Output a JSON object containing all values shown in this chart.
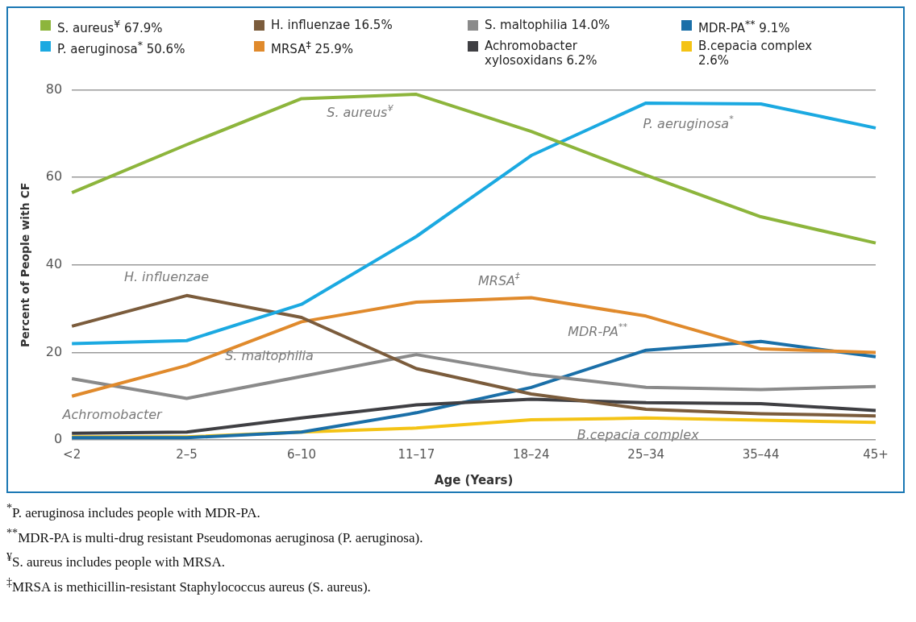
{
  "chart_data": {
    "type": "line",
    "xlabel": "Age (Years)",
    "ylabel": "Percent of People with CF",
    "categories": [
      "<2",
      "2–5",
      "6–10",
      "11–17",
      "18–24",
      "25–34",
      "35–44",
      "45+"
    ],
    "ylim": [
      0,
      80
    ],
    "yticks": [
      0,
      20,
      40,
      60,
      80
    ],
    "grid": "y",
    "legend": "top",
    "series": [
      {
        "name": "S. aureus$^{¥}$ 67.9%",
        "color": "#8db53c",
        "values": [
          56.5,
          67.5,
          78,
          79,
          70.5,
          60.5,
          51,
          45
        ]
      },
      {
        "name": "P. aeruginosa$^{*}$ 50.6%",
        "color": "#1ba9e1",
        "values": [
          22,
          22.7,
          31,
          46.5,
          65,
          77,
          76.8,
          71.3
        ]
      },
      {
        "name": "H. influenzae 16.5%",
        "color": "#7b5c3c",
        "values": [
          26,
          33,
          28,
          16.3,
          10.5,
          7,
          6,
          5.5
        ]
      },
      {
        "name": "MRSA$^{‡}$ 25.9%",
        "color": "#e08a2c",
        "values": [
          10,
          17,
          27,
          31.5,
          32.5,
          28.3,
          20.8,
          20
        ]
      },
      {
        "name": "S. maltophilia 14.0%",
        "color": "#8a8a8a",
        "values": [
          14,
          9.5,
          14.5,
          19.5,
          15,
          12,
          11.5,
          12.2
        ]
      },
      {
        "name": "Achromobacter xylosoxidans 6.2%",
        "color": "#3f3f43",
        "values": [
          1.5,
          1.8,
          5,
          8,
          9.3,
          8.5,
          8.3,
          6.7
        ]
      },
      {
        "name": "MDR-PA$^{**}$ 9.1%",
        "color": "#1a6fa8",
        "values": [
          0.5,
          0.5,
          1.8,
          6.2,
          12,
          20.5,
          22.5,
          19
        ]
      },
      {
        "name": "B.cepacia complex 2.6%",
        "color": "#f4c315",
        "values": [
          0.7,
          0.7,
          1.8,
          2.7,
          4.6,
          5,
          4.5,
          4
        ]
      }
    ],
    "annotations": [
      {
        "text": "S. aureus$^{¥}$",
        "x": "11–17",
        "y": 79
      },
      {
        "text": "P. aeruginosa$^{*}$",
        "x": "35–44",
        "y": 76.8
      },
      {
        "text": "H. influenzae",
        "x": "2–5",
        "y": 33
      },
      {
        "text": "MRSA$^{‡}$",
        "x": "18–24",
        "y": 32.5
      },
      {
        "text": "MDR-PA$^{**}$",
        "x": "25–34",
        "y": 20.5
      },
      {
        "text": "S. maltophilia",
        "x": "6–10",
        "y": 14.5
      },
      {
        "text": "Achromobacter",
        "x": "<2",
        "y": 1.5
      },
      {
        "text": "B.cepacia complex",
        "x": "25–34",
        "y": 5
      },
      "$^{*}$P. aeruginosa includes people with MDR-PA.",
      "$^{**}$MDR-PA is multi-drug resistant Pseudomonas aeruginosa (P. aeruginosa).",
      "$^{¥}$S. aureus includes people with MRSA.",
      "$^{‡}$MRSA is methicillin-resistant Staphylococcus aureus (S. aureus)."
    ]
  }
}
